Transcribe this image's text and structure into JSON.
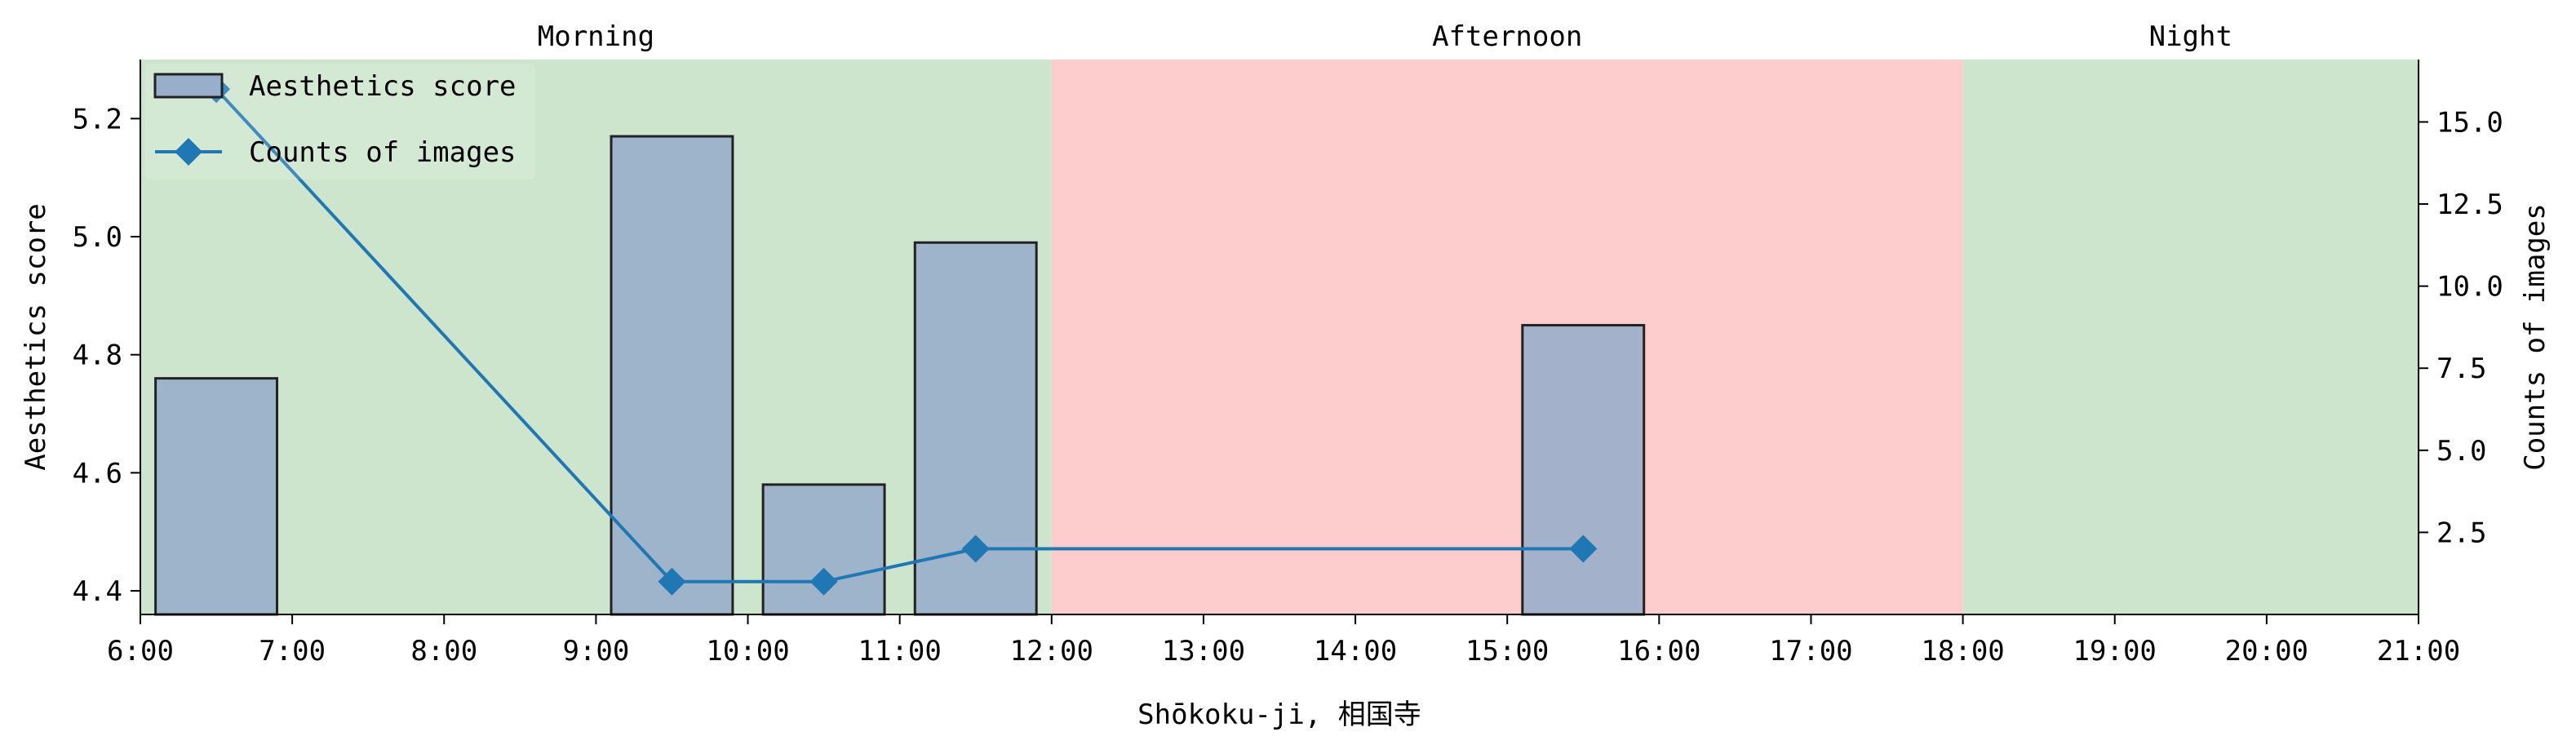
{
  "chart_data": {
    "type": "bar",
    "xlabel": "Shōkoku-ji, 相国寺",
    "ylabel": "Aesthetics score",
    "y2label": "Counts of images",
    "x_range_hours": [
      6,
      21
    ],
    "x_ticks": [
      "6:00",
      "7:00",
      "8:00",
      "9:00",
      "10:00",
      "11:00",
      "12:00",
      "13:00",
      "14:00",
      "15:00",
      "16:00",
      "17:00",
      "18:00",
      "19:00",
      "20:00",
      "21:00"
    ],
    "ylim": [
      4.36,
      5.3
    ],
    "y_ticks": [
      "4.4",
      "4.6",
      "4.8",
      "5.0",
      "5.2"
    ],
    "y2lim": [
      0,
      16.9
    ],
    "y2_ticks": [
      "2.5",
      "5.0",
      "7.5",
      "10.0",
      "12.5",
      "15.0"
    ],
    "periods": [
      {
        "label": "Morning",
        "start": 6,
        "end": 12,
        "color": "#cde5cd"
      },
      {
        "label": "Afternoon",
        "start": 12,
        "end": 18,
        "color": "#fdcccc"
      },
      {
        "label": "Night",
        "start": 18,
        "end": 21,
        "color": "#cde5cd"
      }
    ],
    "series": [
      {
        "name": "Aesthetics score",
        "kind": "bar",
        "color": "#99aecb",
        "edge_color": "#222222",
        "x": [
          6,
          9,
          10,
          11,
          15
        ],
        "values": [
          4.76,
          5.17,
          4.58,
          4.99,
          4.85
        ]
      },
      {
        "name": "Counts of images",
        "kind": "line",
        "color": "#1f77b4",
        "marker": "diamond",
        "x": [
          6.5,
          9.5,
          10.5,
          11.5,
          15.5
        ],
        "values": [
          16,
          1,
          1,
          2,
          2
        ]
      }
    ],
    "legend_position": "upper-left",
    "grid": false
  }
}
